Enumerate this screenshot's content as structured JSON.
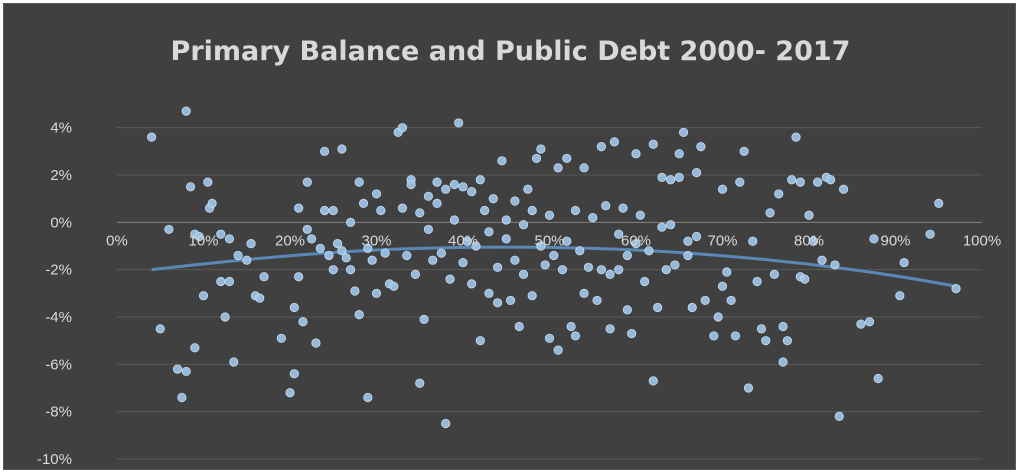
{
  "chart_data": {
    "type": "scatter",
    "title": "Primary Balance and Public Debt 2000- 2017",
    "xlabel": "",
    "ylabel": "",
    "xlim": [
      0,
      1
    ],
    "ylim": [
      -0.1,
      0.05
    ],
    "x_ticks": [
      "0%",
      "10%",
      "20%",
      "30%",
      "40%",
      "50%",
      "60%",
      "70%",
      "80%",
      "90%",
      "100%"
    ],
    "y_ticks": [
      "4%",
      "2%",
      "0%",
      "-2%",
      "-4%",
      "-6%",
      "-8%",
      "-10%"
    ],
    "grid": "horizontal",
    "legend": "none",
    "marker_color": "#9dc3e6",
    "trendline": {
      "type": "polynomial",
      "color": "#5b87b6",
      "points": [
        [
          0.04,
          -0.02
        ],
        [
          0.1,
          -0.0175
        ],
        [
          0.2,
          -0.014
        ],
        [
          0.3,
          -0.0115
        ],
        [
          0.4,
          -0.0105
        ],
        [
          0.5,
          -0.0105
        ],
        [
          0.6,
          -0.0115
        ],
        [
          0.7,
          -0.014
        ],
        [
          0.8,
          -0.0175
        ],
        [
          0.9,
          -0.0225
        ],
        [
          0.97,
          -0.027
        ]
      ]
    },
    "points": [
      [
        0.04,
        0.036
      ],
      [
        0.05,
        -0.045
      ],
      [
        0.06,
        -0.003
      ],
      [
        0.07,
        -0.062
      ],
      [
        0.075,
        -0.074
      ],
      [
        0.08,
        0.047
      ],
      [
        0.08,
        -0.063
      ],
      [
        0.085,
        0.015
      ],
      [
        0.09,
        -0.053
      ],
      [
        0.09,
        -0.005
      ],
      [
        0.095,
        -0.006
      ],
      [
        0.1,
        -0.031
      ],
      [
        0.105,
        0.017
      ],
      [
        0.107,
        0.006
      ],
      [
        0.11,
        0.008
      ],
      [
        0.12,
        -0.005
      ],
      [
        0.12,
        -0.025
      ],
      [
        0.125,
        -0.04
      ],
      [
        0.13,
        -0.007
      ],
      [
        0.13,
        -0.025
      ],
      [
        0.135,
        -0.059
      ],
      [
        0.14,
        -0.014
      ],
      [
        0.15,
        -0.016
      ],
      [
        0.155,
        -0.009
      ],
      [
        0.16,
        -0.031
      ],
      [
        0.165,
        -0.032
      ],
      [
        0.17,
        -0.023
      ],
      [
        0.19,
        -0.049
      ],
      [
        0.2,
        -0.072
      ],
      [
        0.205,
        -0.064
      ],
      [
        0.205,
        -0.036
      ],
      [
        0.21,
        0.006
      ],
      [
        0.21,
        -0.023
      ],
      [
        0.215,
        -0.042
      ],
      [
        0.22,
        0.017
      ],
      [
        0.22,
        -0.003
      ],
      [
        0.225,
        -0.007
      ],
      [
        0.23,
        -0.051
      ],
      [
        0.235,
        -0.011
      ],
      [
        0.24,
        0.03
      ],
      [
        0.24,
        0.005
      ],
      [
        0.245,
        -0.014
      ],
      [
        0.25,
        0.005
      ],
      [
        0.25,
        -0.02
      ],
      [
        0.255,
        -0.009
      ],
      [
        0.26,
        0.031
      ],
      [
        0.26,
        -0.012
      ],
      [
        0.265,
        -0.015
      ],
      [
        0.27,
        0.0
      ],
      [
        0.27,
        -0.02
      ],
      [
        0.275,
        -0.029
      ],
      [
        0.28,
        0.017
      ],
      [
        0.28,
        -0.039
      ],
      [
        0.285,
        0.008
      ],
      [
        0.29,
        -0.074
      ],
      [
        0.29,
        -0.011
      ],
      [
        0.295,
        -0.016
      ],
      [
        0.3,
        0.012
      ],
      [
        0.3,
        -0.03
      ],
      [
        0.305,
        0.005
      ],
      [
        0.31,
        -0.013
      ],
      [
        0.315,
        -0.026
      ],
      [
        0.32,
        -0.027
      ],
      [
        0.325,
        0.038
      ],
      [
        0.33,
        0.04
      ],
      [
        0.33,
        0.006
      ],
      [
        0.335,
        -0.014
      ],
      [
        0.34,
        0.018
      ],
      [
        0.34,
        0.016
      ],
      [
        0.345,
        -0.022
      ],
      [
        0.35,
        0.004
      ],
      [
        0.35,
        -0.068
      ],
      [
        0.355,
        -0.041
      ],
      [
        0.36,
        0.011
      ],
      [
        0.36,
        -0.003
      ],
      [
        0.365,
        -0.016
      ],
      [
        0.37,
        0.017
      ],
      [
        0.37,
        0.008
      ],
      [
        0.375,
        -0.013
      ],
      [
        0.38,
        0.014
      ],
      [
        0.38,
        -0.085
      ],
      [
        0.385,
        -0.024
      ],
      [
        0.39,
        0.016
      ],
      [
        0.39,
        0.001
      ],
      [
        0.395,
        0.042
      ],
      [
        0.4,
        0.015
      ],
      [
        0.4,
        -0.017
      ],
      [
        0.405,
        -0.008
      ],
      [
        0.41,
        0.013
      ],
      [
        0.41,
        -0.026
      ],
      [
        0.415,
        -0.01
      ],
      [
        0.42,
        0.018
      ],
      [
        0.42,
        -0.05
      ],
      [
        0.425,
        0.005
      ],
      [
        0.43,
        -0.004
      ],
      [
        0.43,
        -0.03
      ],
      [
        0.435,
        0.01
      ],
      [
        0.44,
        -0.034
      ],
      [
        0.44,
        -0.019
      ],
      [
        0.445,
        0.026
      ],
      [
        0.45,
        0.001
      ],
      [
        0.45,
        -0.007
      ],
      [
        0.455,
        -0.033
      ],
      [
        0.46,
        0.009
      ],
      [
        0.46,
        -0.016
      ],
      [
        0.465,
        -0.044
      ],
      [
        0.47,
        -0.001
      ],
      [
        0.47,
        -0.022
      ],
      [
        0.475,
        0.014
      ],
      [
        0.48,
        -0.031
      ],
      [
        0.48,
        0.005
      ],
      [
        0.485,
        0.027
      ],
      [
        0.49,
        -0.01
      ],
      [
        0.49,
        0.031
      ],
      [
        0.495,
        -0.018
      ],
      [
        0.5,
        0.003
      ],
      [
        0.5,
        -0.049
      ],
      [
        0.505,
        -0.014
      ],
      [
        0.51,
        0.023
      ],
      [
        0.51,
        -0.054
      ],
      [
        0.515,
        -0.02
      ],
      [
        0.52,
        0.027
      ],
      [
        0.52,
        -0.008
      ],
      [
        0.525,
        -0.044
      ],
      [
        0.53,
        0.005
      ],
      [
        0.53,
        -0.048
      ],
      [
        0.535,
        -0.012
      ],
      [
        0.54,
        0.023
      ],
      [
        0.54,
        -0.03
      ],
      [
        0.545,
        -0.019
      ],
      [
        0.55,
        0.002
      ],
      [
        0.555,
        -0.033
      ],
      [
        0.56,
        0.032
      ],
      [
        0.56,
        -0.02
      ],
      [
        0.565,
        0.007
      ],
      [
        0.57,
        -0.045
      ],
      [
        0.57,
        -0.022
      ],
      [
        0.575,
        0.034
      ],
      [
        0.58,
        -0.005
      ],
      [
        0.58,
        -0.02
      ],
      [
        0.585,
        0.006
      ],
      [
        0.59,
        -0.014
      ],
      [
        0.59,
        -0.037
      ],
      [
        0.595,
        -0.047
      ],
      [
        0.6,
        -0.009
      ],
      [
        0.6,
        0.029
      ],
      [
        0.605,
        0.003
      ],
      [
        0.61,
        -0.025
      ],
      [
        0.615,
        -0.012
      ],
      [
        0.62,
        0.033
      ],
      [
        0.62,
        -0.067
      ],
      [
        0.625,
        -0.036
      ],
      [
        0.63,
        0.019
      ],
      [
        0.63,
        -0.002
      ],
      [
        0.635,
        -0.02
      ],
      [
        0.64,
        0.018
      ],
      [
        0.64,
        -0.001
      ],
      [
        0.645,
        -0.018
      ],
      [
        0.65,
        0.019
      ],
      [
        0.65,
        0.029
      ],
      [
        0.655,
        0.038
      ],
      [
        0.66,
        -0.014
      ],
      [
        0.66,
        -0.008
      ],
      [
        0.665,
        -0.036
      ],
      [
        0.67,
        0.021
      ],
      [
        0.67,
        -0.006
      ],
      [
        0.675,
        0.032
      ],
      [
        0.68,
        -0.033
      ],
      [
        0.69,
        -0.048
      ],
      [
        0.695,
        -0.04
      ],
      [
        0.7,
        0.014
      ],
      [
        0.7,
        -0.027
      ],
      [
        0.705,
        -0.021
      ],
      [
        0.71,
        -0.033
      ],
      [
        0.715,
        -0.048
      ],
      [
        0.72,
        0.017
      ],
      [
        0.725,
        0.03
      ],
      [
        0.73,
        -0.07
      ],
      [
        0.735,
        -0.008
      ],
      [
        0.74,
        -0.025
      ],
      [
        0.745,
        -0.045
      ],
      [
        0.75,
        -0.05
      ],
      [
        0.755,
        0.004
      ],
      [
        0.76,
        -0.022
      ],
      [
        0.765,
        0.012
      ],
      [
        0.77,
        -0.059
      ],
      [
        0.77,
        -0.044
      ],
      [
        0.775,
        -0.05
      ],
      [
        0.78,
        0.018
      ],
      [
        0.785,
        0.036
      ],
      [
        0.79,
        0.017
      ],
      [
        0.79,
        -0.023
      ],
      [
        0.795,
        -0.024
      ],
      [
        0.8,
        0.003
      ],
      [
        0.805,
        -0.008
      ],
      [
        0.81,
        0.017
      ],
      [
        0.815,
        -0.016
      ],
      [
        0.82,
        0.019
      ],
      [
        0.825,
        0.018
      ],
      [
        0.83,
        -0.018
      ],
      [
        0.835,
        -0.082
      ],
      [
        0.84,
        0.014
      ],
      [
        0.86,
        -0.043
      ],
      [
        0.87,
        -0.042
      ],
      [
        0.875,
        -0.007
      ],
      [
        0.88,
        -0.066
      ],
      [
        0.905,
        -0.031
      ],
      [
        0.91,
        -0.017
      ],
      [
        0.94,
        -0.005
      ],
      [
        0.95,
        0.008
      ],
      [
        0.97,
        -0.028
      ]
    ]
  }
}
